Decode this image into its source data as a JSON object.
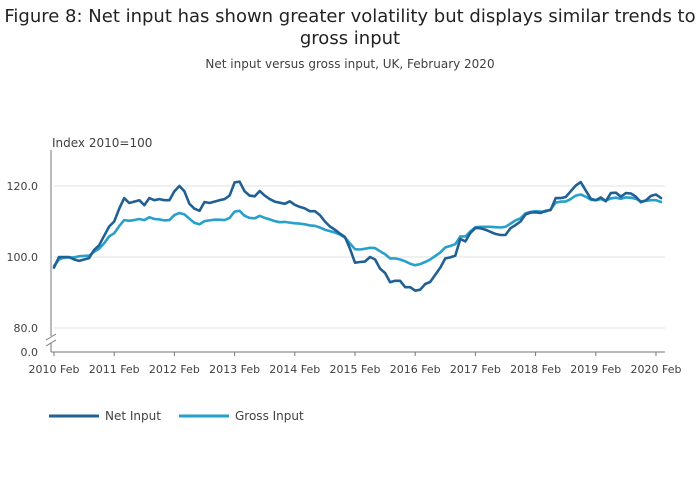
{
  "chart_data": {
    "type": "line",
    "title": "Figure 8: Net input has shown greater volatility but displays similar trends to gross input",
    "subtitle": "Net input versus gross input, UK, February 2020",
    "ylabel": "Index 2010=100",
    "xlabel": "",
    "ylim": [
      80,
      130
    ],
    "axis_break": true,
    "y_ticks": [
      0.0,
      80.0,
      100.0,
      120.0
    ],
    "y_tick_labels": [
      "0.0",
      "80.0",
      "100.0",
      "120.0"
    ],
    "x_tick_labels": [
      "2010 Feb",
      "2011 Feb",
      "2012 Feb",
      "2013 Feb",
      "2014 Feb",
      "2015 Feb",
      "2016 Feb",
      "2017 Feb",
      "2018 Feb",
      "2019 Feb",
      "2020 Feb"
    ],
    "x_start": "2010 Feb",
    "x_unit": "month",
    "grid": "horizontal",
    "legend_position": "bottom-left",
    "series": [
      {
        "name": "Net Input",
        "color": "#206095",
        "values": [
          97.0,
          100.0,
          100.0,
          100.0,
          99.3,
          98.9,
          99.3,
          99.7,
          102.0,
          103.3,
          106.0,
          108.6,
          110.0,
          113.6,
          116.6,
          115.2,
          115.6,
          116.0,
          114.6,
          116.6,
          116.0,
          116.3,
          116.0,
          116.0,
          118.5,
          120.0,
          118.5,
          115.0,
          113.6,
          113.0,
          115.5,
          115.2,
          115.6,
          116.0,
          116.3,
          117.3,
          121.0,
          121.2,
          118.5,
          117.3,
          117.1,
          118.6,
          117.3,
          116.3,
          115.6,
          115.3,
          115.0,
          115.7,
          114.7,
          114.1,
          113.7,
          112.9,
          112.9,
          111.8,
          110.0,
          108.6,
          107.7,
          106.6,
          105.6,
          102.3,
          98.4,
          98.6,
          98.7,
          100.0,
          99.3,
          96.7,
          95.5,
          92.9,
          93.3,
          93.3,
          91.5,
          91.5,
          90.5,
          90.8,
          92.4,
          93.0,
          95.0,
          97.0,
          99.6,
          99.9,
          100.4,
          105.1,
          104.4,
          106.8,
          108.2,
          108.1,
          107.7,
          107.1,
          106.5,
          106.2,
          106.2,
          108.1,
          109.0,
          110.0,
          112.0,
          112.5,
          112.6,
          112.4,
          113.0,
          113.2,
          116.6,
          116.6,
          116.9,
          118.5,
          120.1,
          121.1,
          118.7,
          116.4,
          116.0,
          116.8,
          115.7,
          118.0,
          118.1,
          117.0,
          118.0,
          117.9,
          117.0,
          115.4,
          116.0,
          117.2,
          117.6,
          116.6
        ]
      },
      {
        "name": "Gross Input",
        "color": "#27a0cc",
        "values": [
          97.5,
          99.3,
          99.8,
          99.9,
          99.9,
          100.2,
          100.3,
          100.4,
          101.5,
          102.3,
          103.9,
          105.8,
          106.7,
          108.7,
          110.4,
          110.2,
          110.4,
          110.7,
          110.4,
          111.2,
          110.7,
          110.6,
          110.3,
          110.4,
          111.8,
          112.4,
          112.0,
          110.8,
          109.6,
          109.2,
          110.1,
          110.3,
          110.5,
          110.5,
          110.4,
          111.0,
          112.8,
          113.0,
          111.6,
          111.0,
          110.9,
          111.6,
          111.0,
          110.6,
          110.1,
          109.8,
          109.9,
          109.7,
          109.5,
          109.4,
          109.2,
          108.9,
          108.8,
          108.3,
          107.7,
          107.3,
          106.9,
          106.3,
          105.5,
          103.8,
          102.2,
          102.1,
          102.3,
          102.6,
          102.5,
          101.6,
          100.8,
          99.6,
          99.6,
          99.3,
          98.8,
          98.1,
          97.7,
          98.0,
          98.6,
          99.3,
          100.3,
          101.3,
          102.7,
          103.1,
          103.6,
          105.8,
          105.8,
          107.2,
          108.4,
          108.5,
          108.5,
          108.5,
          108.4,
          108.3,
          108.5,
          109.4,
          110.3,
          110.9,
          112.3,
          112.7,
          112.9,
          112.8,
          112.8,
          113.4,
          115.3,
          115.6,
          115.6,
          116.3,
          117.3,
          117.6,
          117.0,
          116.1,
          116.0,
          116.3,
          115.9,
          116.5,
          116.7,
          116.4,
          116.8,
          116.7,
          116.4,
          115.7,
          115.8,
          116.0,
          116.0,
          115.5
        ]
      }
    ]
  }
}
